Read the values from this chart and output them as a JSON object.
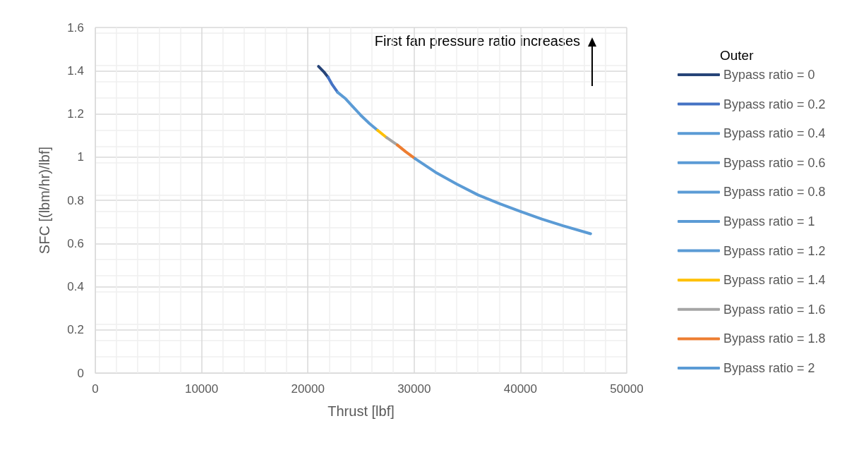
{
  "chart_data": {
    "type": "line",
    "xlabel": "Thrust [lbf]",
    "ylabel": "SFC [(lbm/hr)/lbf]",
    "legend_title": "Outer",
    "annotations": [
      "First fan pressure ratio increases"
    ],
    "xlim": [
      0,
      50000
    ],
    "xticks": [
      0,
      10000,
      20000,
      30000,
      40000,
      50000
    ],
    "ylim": [
      0,
      1.6
    ],
    "yticks": [
      0,
      0.2,
      0.4,
      0.6,
      0.8,
      1,
      1.2,
      1.4,
      1.6
    ],
    "grid": true,
    "legend": "right",
    "marker": "none",
    "line_style": "solid",
    "series": [
      {
        "name": "Bypass ratio = 0",
        "color": "#264478",
        "x": [
          21000,
          21500,
          21900
        ],
        "values": [
          1.42,
          1.395,
          1.37
        ]
      },
      {
        "name": "Bypass ratio = 0.2",
        "color": "#4472c4",
        "x": [
          21900,
          22300,
          22800
        ],
        "values": [
          1.37,
          1.335,
          1.3
        ]
      },
      {
        "name": "Bypass ratio = 0.4",
        "color": "#5b9bd5",
        "x": [
          null
        ],
        "values": [
          null
        ]
      },
      {
        "name": "Bypass ratio = 0.6",
        "color": "#5b9bd5",
        "x": [
          null
        ],
        "values": [
          null
        ]
      },
      {
        "name": "Bypass ratio = 0.8",
        "color": "#5b9bd5",
        "x": [
          null
        ],
        "values": [
          null
        ]
      },
      {
        "name": "Bypass ratio = 1",
        "color": "#5b9bd5",
        "x": [
          null
        ],
        "values": [
          null
        ]
      },
      {
        "name": "Bypass ratio = 1.2",
        "color": "#5b9bd5",
        "x": [
          22800,
          23550,
          24300,
          25050,
          25800,
          26560
        ],
        "values": [
          1.3,
          1.27,
          1.23,
          1.19,
          1.155,
          1.124
        ]
      },
      {
        "name": "Bypass ratio = 1.4",
        "color": "#ffc000",
        "x": [
          26560,
          27420
        ],
        "values": [
          1.124,
          1.09
        ]
      },
      {
        "name": "Bypass ratio = 1.6",
        "color": "#a5a5a5",
        "x": [
          27420,
          28420
        ],
        "values": [
          1.09,
          1.056
        ]
      },
      {
        "name": "Bypass ratio = 1.8",
        "color": "#ed7d31",
        "x": [
          28420,
          29200,
          30080
        ],
        "values": [
          1.056,
          1.025,
          0.993
        ]
      },
      {
        "name": "Bypass ratio = 2",
        "color": "#5b9bd5",
        "x": [
          30080,
          32000,
          34000,
          36000,
          38000,
          40000,
          42000,
          44000,
          46600
        ],
        "values": [
          0.993,
          0.93,
          0.875,
          0.825,
          0.785,
          0.748,
          0.713,
          0.682,
          0.645
        ]
      }
    ]
  }
}
